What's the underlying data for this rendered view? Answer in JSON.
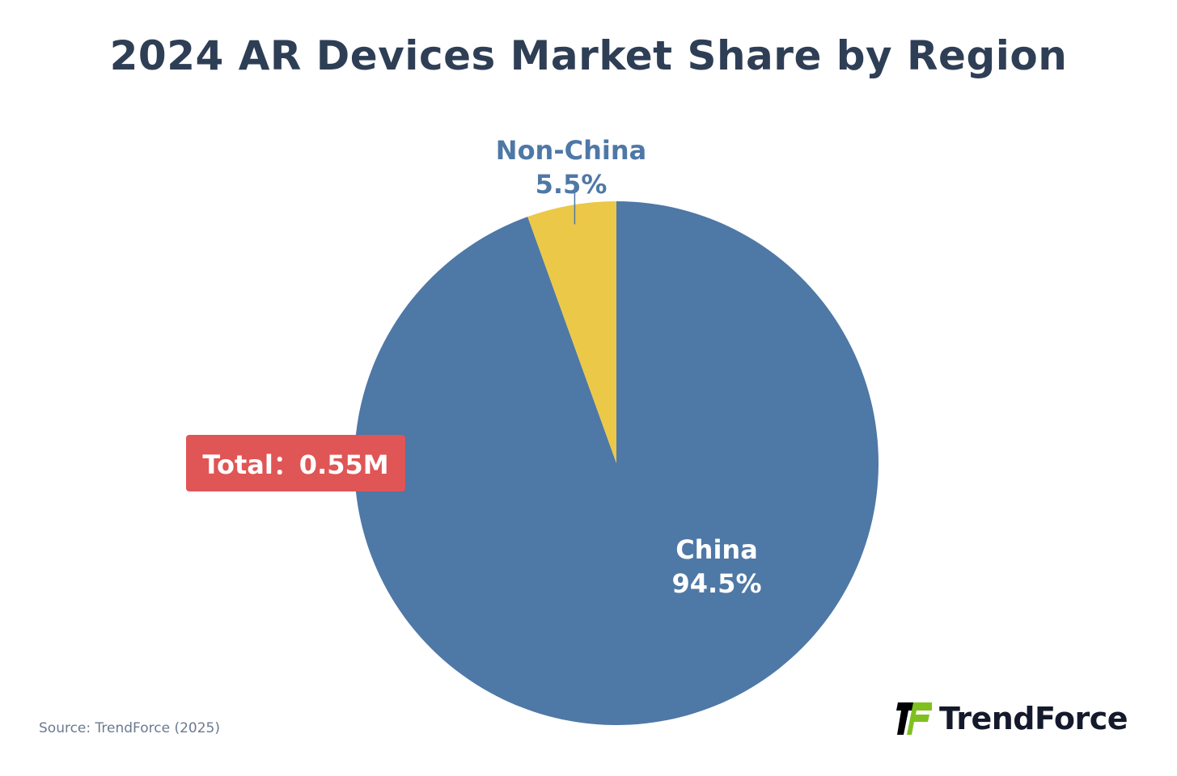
{
  "chart_data": {
    "type": "pie",
    "title": "2024 AR Devices Market Share by Region",
    "slices": [
      {
        "label": "China",
        "value": 94.5,
        "display": "94.5%",
        "color": "#4e78a6"
      },
      {
        "label": "Non-China",
        "value": 5.5,
        "display": "5.5%",
        "color": "#ebc848"
      }
    ],
    "start_angle": "12 o'clock",
    "direction": "clockwise",
    "annotation": "Total：0.55M",
    "annotation_color": "#e05555"
  },
  "source": "Source: TrendForce (2025)",
  "logo": {
    "text": "TrendForce",
    "colors": [
      "#000000",
      "#7ec11f"
    ]
  }
}
